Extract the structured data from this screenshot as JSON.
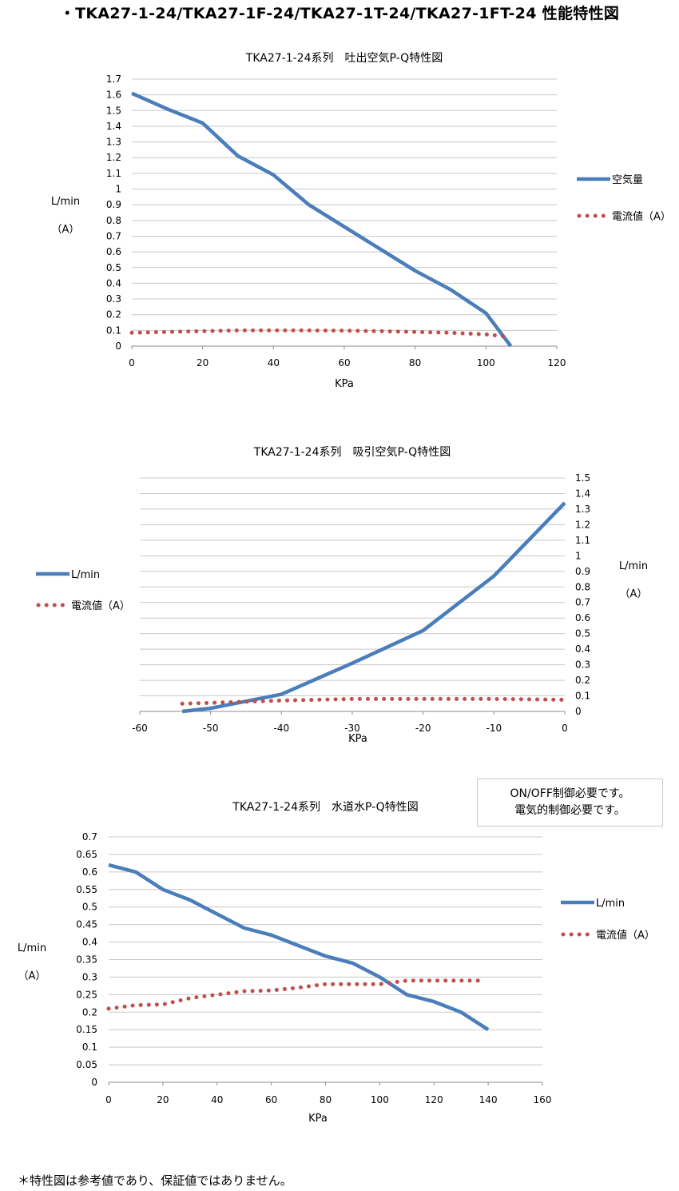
{
  "page": {
    "title": "・TKA27-1-24/TKA27-1F-24/TKA27-1T-24/TKA27-1FT-24 性能特性図",
    "note_lines": [
      "ON/OFF制御必要です。",
      "電気的制御必要です。"
    ],
    "footnote": "＊特性図は参考値であり、保証値ではありません。"
  },
  "chart_data": [
    {
      "type": "line",
      "title": "TKA27-1-24系列　吐出空気P-Q特性図",
      "xlabel": "KPa",
      "ylabel_lines": [
        "L/min",
        "（A）"
      ],
      "xlim": [
        0,
        120
      ],
      "ylim": [
        0,
        1.7
      ],
      "x_ticks": [
        "0",
        "20",
        "40",
        "60",
        "80",
        "100",
        "120"
      ],
      "y_ticks": [
        "0",
        "0.1",
        "0.2",
        "0.3",
        "0.4",
        "0.5",
        "0.6",
        "0.7",
        "0.8",
        "0.9",
        "1",
        "1.1",
        "1.2",
        "1.3",
        "1.4",
        "1.5",
        "1.6",
        "1.7"
      ],
      "grid": true,
      "legend_position": "right",
      "series": [
        {
          "name": "空気量",
          "style": "solid",
          "color": "#4a7ebb",
          "x": [
            0,
            10,
            20,
            30,
            40,
            50,
            60,
            70,
            80,
            90,
            100,
            107
          ],
          "y": [
            1.61,
            1.51,
            1.42,
            1.21,
            1.09,
            0.9,
            0.76,
            0.62,
            0.48,
            0.36,
            0.21,
            0.0
          ]
        },
        {
          "name": "電流値（A）",
          "style": "dotted",
          "color": "#c0504d",
          "x": [
            0,
            10,
            20,
            30,
            40,
            50,
            60,
            70,
            80,
            90,
            100,
            106
          ],
          "y": [
            0.085,
            0.09,
            0.095,
            0.1,
            0.1,
            0.1,
            0.098,
            0.095,
            0.09,
            0.085,
            0.075,
            0.06
          ]
        }
      ]
    },
    {
      "type": "line",
      "title": "TKA27-1-24系列　吸引空気P-Q特性図",
      "xlabel": "KPa",
      "ylabel_lines": [
        "L/min",
        "（A）"
      ],
      "xlim": [
        -60,
        0
      ],
      "ylim": [
        0,
        1.5
      ],
      "x_ticks": [
        "-60",
        "-50",
        "-40",
        "-30",
        "-20",
        "-10",
        "0"
      ],
      "y_ticks": [
        "0",
        "0.1",
        "0.2",
        "0.3",
        "0.4",
        "0.5",
        "0.6",
        "0.7",
        "0.8",
        "0.9",
        "1",
        "1.1",
        "1.2",
        "1.3",
        "1.4",
        "1.5"
      ],
      "grid": true,
      "legend_position": "left",
      "y_axis_side": "right",
      "series": [
        {
          "name": "L/min",
          "style": "solid",
          "color": "#4a7ebb",
          "x": [
            -54,
            -50,
            -40,
            -30,
            -20,
            -10,
            0
          ],
          "y": [
            0.0,
            0.02,
            0.11,
            0.31,
            0.52,
            0.87,
            1.34
          ]
        },
        {
          "name": "電流値（A）",
          "style": "dotted",
          "color": "#c0504d",
          "x": [
            -54,
            -50,
            -40,
            -30,
            -20,
            -10,
            0
          ],
          "y": [
            0.05,
            0.055,
            0.07,
            0.08,
            0.08,
            0.08,
            0.075
          ]
        }
      ]
    },
    {
      "type": "line",
      "title": "TKA27-1-24系列　水道水P-Q特性図",
      "xlabel": "KPa",
      "ylabel_lines": [
        "L/min",
        "（A）"
      ],
      "xlim": [
        0,
        160
      ],
      "ylim": [
        0,
        0.7
      ],
      "x_ticks": [
        "0",
        "20",
        "40",
        "60",
        "80",
        "100",
        "120",
        "140",
        "160"
      ],
      "y_ticks": [
        "0",
        "0.05",
        "0.1",
        "0.15",
        "0.2",
        "0.25",
        "0.3",
        "0.35",
        "0.4",
        "0.45",
        "0.5",
        "0.55",
        "0.6",
        "0.65",
        "0.7"
      ],
      "grid": true,
      "legend_position": "right",
      "series": [
        {
          "name": "L/min",
          "style": "solid",
          "color": "#4a7ebb",
          "x": [
            0,
            10,
            20,
            30,
            40,
            50,
            60,
            70,
            80,
            90,
            100,
            110,
            120,
            130,
            140
          ],
          "y": [
            0.62,
            0.6,
            0.55,
            0.52,
            0.48,
            0.44,
            0.42,
            0.39,
            0.36,
            0.34,
            0.3,
            0.25,
            0.23,
            0.2,
            0.15
          ]
        },
        {
          "name": "電流値（A）",
          "style": "dotted",
          "color": "#c0504d",
          "x": [
            0,
            10,
            20,
            30,
            40,
            50,
            60,
            70,
            80,
            90,
            100,
            110,
            120,
            130,
            137
          ],
          "y": [
            0.21,
            0.22,
            0.222,
            0.24,
            0.25,
            0.26,
            0.262,
            0.27,
            0.28,
            0.28,
            0.28,
            0.29,
            0.29,
            0.29,
            0.29
          ]
        }
      ]
    }
  ]
}
